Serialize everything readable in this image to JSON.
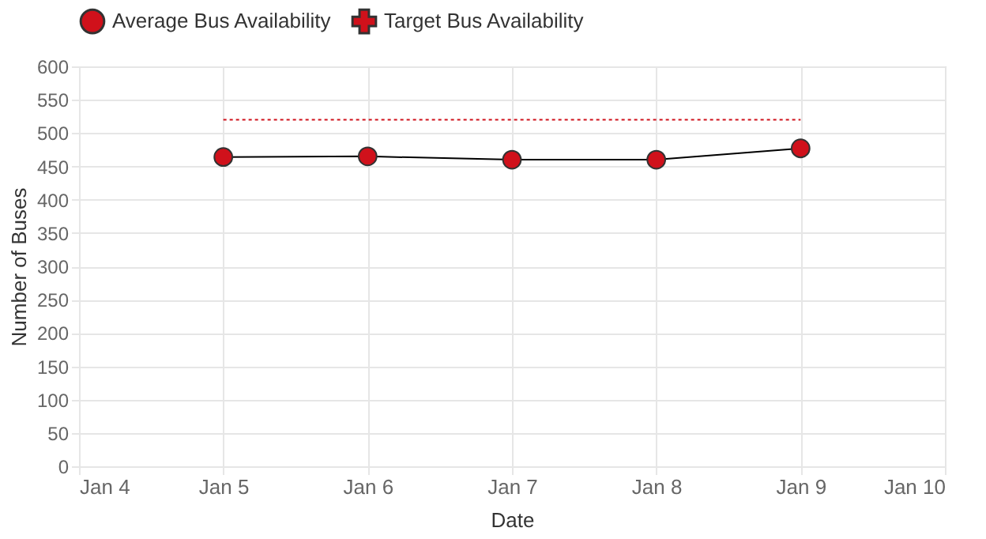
{
  "chart_data": {
    "type": "line",
    "xlabel": "Date",
    "ylabel": "Number of Buses",
    "x": [
      "--01-05",
      "--01-06",
      "--01-07",
      "--01-08",
      "--01-09"
    ],
    "series": [
      {
        "name": "Average Bus Availability",
        "color": "#d0111b",
        "values": [
          464,
          465,
          460,
          460,
          477
        ],
        "marker": "circle",
        "line_style": "solid"
      },
      {
        "name": "Target Bus Availability",
        "color": "#d0111b",
        "values": [
          520,
          520,
          520,
          520,
          520
        ],
        "marker": "none",
        "line_style": "dotted"
      }
    ],
    "xlim": [
      "--01-04",
      "--01-10"
    ],
    "xticks": [
      {
        "value": "--01-04",
        "label": "Jan 4"
      },
      {
        "value": "--01-05",
        "label": "Jan 5"
      },
      {
        "value": "--01-06",
        "label": "Jan 6"
      },
      {
        "value": "--01-07",
        "label": "Jan 7"
      },
      {
        "value": "--01-08",
        "label": "Jan 8"
      },
      {
        "value": "--01-09",
        "label": "Jan 9"
      },
      {
        "value": "--01-10",
        "label": "Jan 10"
      }
    ],
    "ylim": [
      0,
      600
    ],
    "yticks": [
      0,
      50,
      100,
      150,
      200,
      250,
      300,
      350,
      400,
      450,
      500,
      550,
      600
    ],
    "grid": true,
    "legend": "top"
  }
}
